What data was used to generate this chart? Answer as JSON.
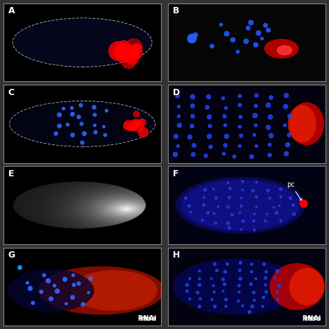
{
  "panels": [
    "A",
    "B",
    "C",
    "D",
    "E",
    "F",
    "G",
    "H"
  ],
  "grid": [
    4,
    2
  ],
  "bg_color": "#000000",
  "border_color": "#888888",
  "label_color": "#ffffff",
  "label_fontsize": 10,
  "label_bold": true,
  "figsize": [
    4.74,
    4.74
  ],
  "dpi": 100,
  "vasa_rnai_panels": [
    "G",
    "H"
  ],
  "vasa_italic": true,
  "pc_label_panel": "F"
}
